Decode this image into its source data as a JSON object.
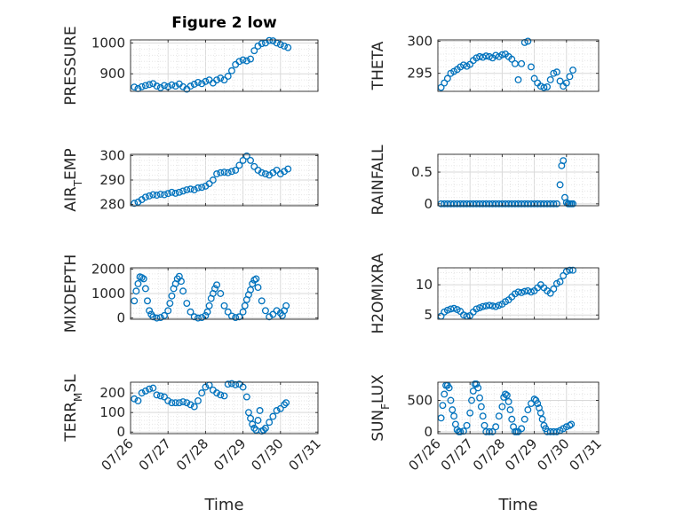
{
  "figure": {
    "title": "Figure 2 low",
    "xlabel": "Time",
    "marker_color": "#0072BD",
    "grid_color": "#dcdcdc"
  },
  "chart_data": [
    {
      "id": "pressure",
      "type": "scatter",
      "title": "Figure 2 low",
      "ylabel": "PRESSURE",
      "ylabel_sub": "",
      "yticks": [
        900,
        1000
      ],
      "ylim": [
        843,
        1010
      ],
      "xticks": [
        "07/26",
        "07/27",
        "07/28",
        "07/29",
        "07/30",
        "07/31"
      ],
      "xlim": [
        26,
        31
      ],
      "show_xticklabels": false,
      "xlabel": "",
      "x": [
        26.1,
        26.2,
        26.3,
        26.4,
        26.5,
        26.6,
        26.7,
        26.8,
        26.9,
        27.0,
        27.1,
        27.2,
        27.3,
        27.4,
        27.5,
        27.6,
        27.7,
        27.8,
        27.9,
        28.0,
        28.1,
        28.2,
        28.3,
        28.4,
        28.5,
        28.6,
        28.7,
        28.8,
        28.9,
        29.0,
        29.1,
        29.2,
        29.3,
        29.4,
        29.5,
        29.6,
        29.7,
        29.8,
        29.9,
        30.0,
        30.1,
        30.2
      ],
      "y": [
        857,
        852,
        858,
        862,
        865,
        868,
        860,
        855,
        862,
        858,
        864,
        860,
        867,
        858,
        850,
        860,
        866,
        872,
        868,
        875,
        880,
        870,
        880,
        886,
        880,
        892,
        910,
        930,
        940,
        945,
        942,
        948,
        975,
        990,
        998,
        1000,
        1008,
        1007,
        1000,
        995,
        990,
        985
      ]
    },
    {
      "id": "theta",
      "type": "scatter",
      "title": "",
      "ylabel": "THETA",
      "ylabel_sub": "",
      "yticks": [
        295,
        300
      ],
      "ylim": [
        292.2,
        300.2
      ],
      "xticks": [
        "07/26",
        "07/27",
        "07/28",
        "07/29",
        "07/30",
        "07/31"
      ],
      "xlim": [
        26,
        31
      ],
      "show_xticklabels": false,
      "xlabel": "",
      "x": [
        26.1,
        26.2,
        26.3,
        26.4,
        26.5,
        26.6,
        26.7,
        26.8,
        26.9,
        27.0,
        27.1,
        27.2,
        27.3,
        27.4,
        27.5,
        27.6,
        27.7,
        27.8,
        27.9,
        28.0,
        28.1,
        28.2,
        28.3,
        28.4,
        28.5,
        28.6,
        28.7,
        28.8,
        28.9,
        29.0,
        29.1,
        29.2,
        29.3,
        29.4,
        29.5,
        29.6,
        29.7,
        29.8,
        29.9,
        30.0,
        30.1,
        30.2
      ],
      "y": [
        292.8,
        293.5,
        294.2,
        295.0,
        295.3,
        295.6,
        296.0,
        296.3,
        296.1,
        296.4,
        297.0,
        297.4,
        297.6,
        297.5,
        297.7,
        297.6,
        297.4,
        297.8,
        297.6,
        297.9,
        298.0,
        297.6,
        297.2,
        296.5,
        294.0,
        296.5,
        299.8,
        300.0,
        296.0,
        294.2,
        293.5,
        293.0,
        292.8,
        292.9,
        294.0,
        295.0,
        295.2,
        293.8,
        293.0,
        293.5,
        294.5,
        295.5
      ]
    },
    {
      "id": "air_temp",
      "type": "scatter",
      "title": "",
      "ylabel": "AIR",
      "ylabel_sub": "T",
      "ylabel_after": "EMP",
      "yticks": [
        280,
        290,
        300
      ],
      "ylim": [
        279.5,
        300.5
      ],
      "xticks": [
        "07/26",
        "07/27",
        "07/28",
        "07/29",
        "07/30",
        "07/31"
      ],
      "xlim": [
        26,
        31
      ],
      "show_xticklabels": false,
      "xlabel": "",
      "x": [
        26.1,
        26.2,
        26.3,
        26.4,
        26.5,
        26.6,
        26.7,
        26.8,
        26.9,
        27.0,
        27.1,
        27.2,
        27.3,
        27.4,
        27.5,
        27.6,
        27.7,
        27.8,
        27.9,
        28.0,
        28.1,
        28.2,
        28.3,
        28.4,
        28.5,
        28.6,
        28.7,
        28.8,
        28.9,
        29.0,
        29.1,
        29.2,
        29.3,
        29.4,
        29.5,
        29.6,
        29.7,
        29.8,
        29.9,
        30.0,
        30.1,
        30.2
      ],
      "y": [
        280.5,
        281.0,
        282.0,
        283.0,
        283.5,
        284.0,
        283.8,
        284.2,
        284.0,
        284.5,
        285.0,
        284.6,
        285.0,
        285.5,
        286.0,
        286.3,
        286.0,
        286.8,
        287.0,
        287.5,
        288.5,
        290.0,
        292.5,
        293.0,
        293.2,
        293.0,
        293.5,
        294.0,
        296.0,
        298.0,
        299.8,
        298.0,
        295.5,
        294.0,
        293.0,
        292.5,
        292.0,
        293.0,
        294.0,
        292.5,
        293.5,
        294.5
      ]
    },
    {
      "id": "rainfall",
      "type": "scatter",
      "title": "",
      "ylabel": "RAINFALL",
      "ylabel_sub": "",
      "yticks": [
        0,
        0.5
      ],
      "ylim": [
        -0.03,
        0.78
      ],
      "xticks": [
        "07/26",
        "07/27",
        "07/28",
        "07/29",
        "07/30",
        "07/31"
      ],
      "xlim": [
        26,
        31
      ],
      "show_xticklabels": false,
      "xlabel": "",
      "x": [
        26.1,
        26.2,
        26.3,
        26.4,
        26.5,
        26.6,
        26.7,
        26.8,
        26.9,
        27.0,
        27.1,
        27.2,
        27.3,
        27.4,
        27.5,
        27.6,
        27.7,
        27.8,
        27.9,
        28.0,
        28.1,
        28.2,
        28.3,
        28.4,
        28.5,
        28.6,
        28.7,
        28.8,
        28.9,
        29.0,
        29.1,
        29.2,
        29.3,
        29.4,
        29.5,
        29.6,
        29.7,
        29.8,
        29.85,
        29.9,
        29.95,
        30.0,
        30.05,
        30.1,
        30.15,
        30.2
      ],
      "y": [
        0,
        0,
        0,
        0,
        0,
        0,
        0,
        0,
        0,
        0,
        0,
        0,
        0,
        0,
        0,
        0,
        0,
        0,
        0,
        0,
        0,
        0,
        0,
        0,
        0,
        0,
        0,
        0,
        0,
        0,
        0,
        0,
        0,
        0,
        0,
        0,
        0,
        0.3,
        0.6,
        0.68,
        0.1,
        0.02,
        0,
        0,
        0,
        0
      ]
    },
    {
      "id": "mixdepth",
      "type": "scatter",
      "title": "",
      "ylabel": "MIXDEPTH",
      "ylabel_sub": "",
      "yticks": [
        0,
        1000,
        2000
      ],
      "ylim": [
        -50,
        2050
      ],
      "xticks": [
        "07/26",
        "07/27",
        "07/28",
        "07/29",
        "07/30",
        "07/31"
      ],
      "xlim": [
        26,
        31
      ],
      "show_xticklabels": false,
      "xlabel": "",
      "x": [
        26.1,
        26.15,
        26.2,
        26.25,
        26.3,
        26.35,
        26.4,
        26.45,
        26.5,
        26.55,
        26.6,
        26.7,
        26.8,
        26.9,
        27.0,
        27.05,
        27.1,
        27.15,
        27.2,
        27.25,
        27.3,
        27.35,
        27.4,
        27.5,
        27.6,
        27.7,
        27.8,
        27.9,
        28.0,
        28.05,
        28.1,
        28.15,
        28.2,
        28.25,
        28.3,
        28.4,
        28.5,
        28.6,
        28.7,
        28.8,
        28.9,
        29.0,
        29.05,
        29.1,
        29.15,
        29.2,
        29.25,
        29.3,
        29.35,
        29.4,
        29.5,
        29.6,
        29.7,
        29.8,
        29.9,
        30.0,
        30.05,
        30.1,
        30.15
      ],
      "y": [
        700,
        1100,
        1400,
        1680,
        1650,
        1600,
        1200,
        700,
        300,
        150,
        50,
        0,
        20,
        100,
        300,
        600,
        900,
        1200,
        1400,
        1600,
        1700,
        1500,
        1100,
        600,
        250,
        50,
        0,
        20,
        100,
        250,
        500,
        800,
        1000,
        1200,
        1350,
        1000,
        500,
        250,
        80,
        20,
        50,
        250,
        500,
        750,
        950,
        1150,
        1400,
        1550,
        1600,
        1250,
        700,
        300,
        50,
        150,
        300,
        200,
        100,
        300,
        500
      ]
    },
    {
      "id": "h2omixra",
      "type": "scatter",
      "title": "",
      "ylabel": "H2OMIXRA",
      "ylabel_sub": "",
      "yticks": [
        5,
        10
      ],
      "ylim": [
        4.3,
        12.8
      ],
      "xticks": [
        "07/26",
        "07/27",
        "07/28",
        "07/29",
        "07/30",
        "07/31"
      ],
      "xlim": [
        26,
        31
      ],
      "show_xticklabels": false,
      "xlabel": "",
      "x": [
        26.1,
        26.2,
        26.3,
        26.4,
        26.5,
        26.6,
        26.7,
        26.8,
        26.9,
        27.0,
        27.1,
        27.2,
        27.3,
        27.4,
        27.5,
        27.6,
        27.7,
        27.8,
        27.9,
        28.0,
        28.1,
        28.2,
        28.3,
        28.4,
        28.5,
        28.6,
        28.7,
        28.8,
        28.9,
        29.0,
        29.1,
        29.2,
        29.3,
        29.4,
        29.5,
        29.6,
        29.7,
        29.8,
        29.9,
        30.0,
        30.1,
        30.2
      ],
      "y": [
        4.8,
        5.5,
        5.8,
        6.0,
        6.1,
        5.9,
        5.6,
        5.0,
        4.8,
        4.9,
        5.5,
        6.0,
        6.2,
        6.4,
        6.5,
        6.6,
        6.5,
        6.4,
        6.6,
        6.8,
        7.2,
        7.5,
        8.0,
        8.5,
        8.8,
        8.7,
        8.9,
        9.0,
        8.8,
        9.0,
        9.5,
        10.0,
        9.5,
        9.0,
        8.6,
        9.3,
        10.2,
        10.5,
        11.5,
        12.2,
        12.4,
        12.4
      ]
    },
    {
      "id": "terr_msl",
      "type": "scatter",
      "title": "",
      "ylabel": "TERR",
      "ylabel_sub": "M",
      "ylabel_after": "SL",
      "yticks": [
        0,
        100,
        200
      ],
      "ylim": [
        -8,
        255
      ],
      "xticks": [
        "07/26",
        "07/27",
        "07/28",
        "07/29",
        "07/30",
        "07/31"
      ],
      "xlim": [
        26,
        31
      ],
      "show_xticklabels": true,
      "xlabel": "Time",
      "x": [
        26.1,
        26.2,
        26.3,
        26.4,
        26.5,
        26.6,
        26.7,
        26.8,
        26.9,
        27.0,
        27.1,
        27.2,
        27.3,
        27.4,
        27.5,
        27.6,
        27.7,
        27.8,
        27.9,
        28.0,
        28.1,
        28.2,
        28.3,
        28.4,
        28.5,
        28.6,
        28.7,
        28.8,
        28.9,
        29.0,
        29.1,
        29.15,
        29.2,
        29.25,
        29.3,
        29.35,
        29.4,
        29.45,
        29.5,
        29.55,
        29.6,
        29.7,
        29.8,
        29.9,
        30.0,
        30.1,
        30.15
      ],
      "y": [
        170,
        160,
        200,
        210,
        220,
        225,
        190,
        185,
        180,
        160,
        150,
        150,
        150,
        155,
        150,
        140,
        130,
        160,
        200,
        230,
        240,
        215,
        200,
        190,
        185,
        245,
        248,
        242,
        245,
        230,
        180,
        100,
        70,
        40,
        20,
        10,
        60,
        110,
        5,
        10,
        20,
        50,
        80,
        110,
        120,
        140,
        150
      ]
    },
    {
      "id": "sun_flux",
      "type": "scatter",
      "title": "",
      "ylabel": "SUN",
      "ylabel_sub": "F",
      "ylabel_after": "LUX",
      "yticks": [
        0,
        500
      ],
      "ylim": [
        -30,
        790
      ],
      "xticks": [
        "07/26",
        "07/27",
        "07/28",
        "07/29",
        "07/30",
        "07/31"
      ],
      "xlim": [
        26,
        31
      ],
      "show_xticklabels": true,
      "xlabel": "Time",
      "x": [
        26.1,
        26.15,
        26.2,
        26.25,
        26.3,
        26.35,
        26.4,
        26.45,
        26.5,
        26.55,
        26.6,
        26.65,
        26.7,
        26.8,
        26.9,
        27.0,
        27.05,
        27.1,
        27.15,
        27.2,
        27.25,
        27.3,
        27.35,
        27.4,
        27.45,
        27.5,
        27.6,
        27.7,
        27.8,
        27.9,
        28.0,
        28.05,
        28.1,
        28.15,
        28.2,
        28.25,
        28.3,
        28.35,
        28.4,
        28.45,
        28.5,
        28.6,
        28.7,
        28.8,
        28.9,
        29.0,
        29.05,
        29.1,
        29.15,
        29.2,
        29.25,
        29.3,
        29.35,
        29.4,
        29.5,
        29.6,
        29.7,
        29.8,
        29.9,
        30.0,
        30.1,
        30.15
      ],
      "y": [
        220,
        420,
        600,
        740,
        740,
        700,
        500,
        350,
        250,
        120,
        30,
        0,
        0,
        10,
        100,
        300,
        500,
        650,
        760,
        760,
        700,
        540,
        400,
        250,
        100,
        0,
        0,
        0,
        80,
        250,
        400,
        550,
        600,
        580,
        480,
        350,
        200,
        80,
        0,
        0,
        0,
        50,
        200,
        350,
        450,
        520,
        500,
        450,
        380,
        300,
        200,
        100,
        50,
        0,
        0,
        0,
        0,
        20,
        50,
        80,
        100,
        120
      ]
    }
  ]
}
